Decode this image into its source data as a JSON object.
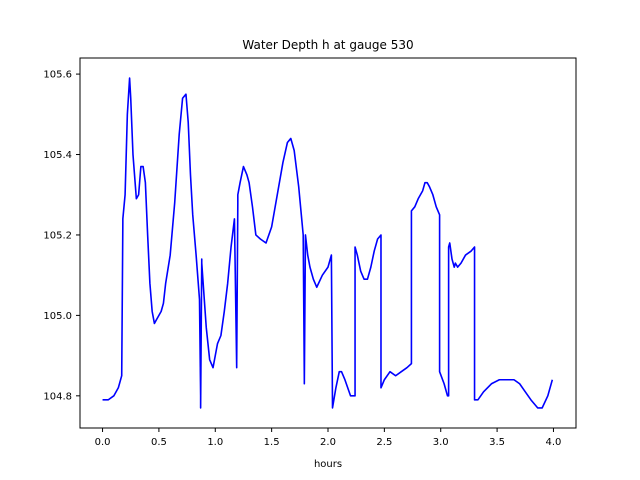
{
  "chart_data": {
    "type": "line",
    "title": "Water Depth h at gauge 530",
    "xlabel": "hours",
    "ylabel": "",
    "xlim": [
      -0.2,
      4.2
    ],
    "ylim": [
      104.72,
      105.64
    ],
    "xticks": [
      0.0,
      0.5,
      1.0,
      1.5,
      2.0,
      2.5,
      3.0,
      3.5,
      4.0
    ],
    "xtick_labels": [
      "0.0",
      "0.5",
      "1.0",
      "1.5",
      "2.0",
      "2.5",
      "3.0",
      "3.5",
      "4.0"
    ],
    "yticks": [
      104.8,
      105.0,
      105.2,
      105.4,
      105.6
    ],
    "ytick_labels": [
      "104.8",
      "105.0",
      "105.2",
      "105.4",
      "105.6"
    ],
    "grid": false,
    "series": [
      {
        "color": "#0000ff",
        "x": [
          0.0,
          0.05,
          0.1,
          0.14,
          0.17,
          0.18,
          0.18,
          0.2,
          0.22,
          0.24,
          0.25,
          0.27,
          0.3,
          0.32,
          0.34,
          0.36,
          0.38,
          0.4,
          0.42,
          0.44,
          0.46,
          0.48,
          0.5,
          0.52,
          0.54,
          0.56,
          0.6,
          0.64,
          0.68,
          0.71,
          0.74,
          0.76,
          0.78,
          0.8,
          0.83,
          0.86,
          0.87,
          0.87,
          0.88,
          0.88,
          0.9,
          0.92,
          0.95,
          0.98,
          1.0,
          1.02,
          1.05,
          1.08,
          1.11,
          1.14,
          1.17,
          1.19,
          1.19,
          1.2,
          1.2,
          1.22,
          1.25,
          1.28,
          1.3,
          1.33,
          1.36,
          1.4,
          1.45,
          1.5,
          1.55,
          1.6,
          1.64,
          1.67,
          1.7,
          1.74,
          1.78,
          1.79,
          1.79,
          1.8,
          1.82,
          1.84,
          1.87,
          1.9,
          1.95,
          2.0,
          2.03,
          2.04,
          2.04,
          2.07,
          2.1,
          2.12,
          2.15,
          2.2,
          2.24,
          2.24,
          2.26,
          2.29,
          2.32,
          2.35,
          2.38,
          2.41,
          2.44,
          2.47,
          2.47,
          2.5,
          2.55,
          2.6,
          2.65,
          2.7,
          2.74,
          2.74,
          2.77,
          2.8,
          2.82,
          2.84,
          2.86,
          2.88,
          2.9,
          2.93,
          2.96,
          2.99,
          2.99,
          3.03,
          3.06,
          3.07,
          3.07,
          3.08,
          3.1,
          3.12,
          3.13,
          3.15,
          3.18,
          3.22,
          3.27,
          3.3,
          3.3,
          3.33,
          3.38,
          3.45,
          3.52,
          3.58,
          3.62,
          3.65,
          3.7,
          3.75,
          3.8,
          3.86,
          3.9,
          3.95,
          3.99
        ],
        "y": [
          104.79,
          104.79,
          104.8,
          104.82,
          104.85,
          105.23,
          105.24,
          105.3,
          105.5,
          105.59,
          105.54,
          105.4,
          105.29,
          105.3,
          105.37,
          105.37,
          105.33,
          105.2,
          105.08,
          105.01,
          104.98,
          104.99,
          105.0,
          105.01,
          105.03,
          105.08,
          105.15,
          105.28,
          105.45,
          105.54,
          105.55,
          105.48,
          105.35,
          105.25,
          105.15,
          105.04,
          104.8,
          104.77,
          105.14,
          105.13,
          105.05,
          104.97,
          104.89,
          104.87,
          104.9,
          104.93,
          104.95,
          105.01,
          105.08,
          105.17,
          105.24,
          104.87,
          104.88,
          105.28,
          105.3,
          105.33,
          105.37,
          105.35,
          105.33,
          105.27,
          105.2,
          105.19,
          105.18,
          105.22,
          105.3,
          105.38,
          105.43,
          105.44,
          105.41,
          105.32,
          105.2,
          104.84,
          104.83,
          105.2,
          105.15,
          105.12,
          105.09,
          105.07,
          105.1,
          105.12,
          105.15,
          104.77,
          104.77,
          104.82,
          104.86,
          104.86,
          104.84,
          104.8,
          104.8,
          105.17,
          105.15,
          105.11,
          105.09,
          105.09,
          105.12,
          105.16,
          105.19,
          105.2,
          104.82,
          104.84,
          104.86,
          104.85,
          104.86,
          104.87,
          104.88,
          105.26,
          105.27,
          105.29,
          105.3,
          105.31,
          105.33,
          105.33,
          105.32,
          105.3,
          105.27,
          105.25,
          104.86,
          104.83,
          104.8,
          104.8,
          105.17,
          105.18,
          105.14,
          105.12,
          105.13,
          105.12,
          105.13,
          105.15,
          105.16,
          105.17,
          104.79,
          104.79,
          104.81,
          104.83,
          104.84,
          104.84,
          104.84,
          104.84,
          104.83,
          104.81,
          104.79,
          104.77,
          104.77,
          104.8,
          104.84
        ]
      }
    ]
  }
}
